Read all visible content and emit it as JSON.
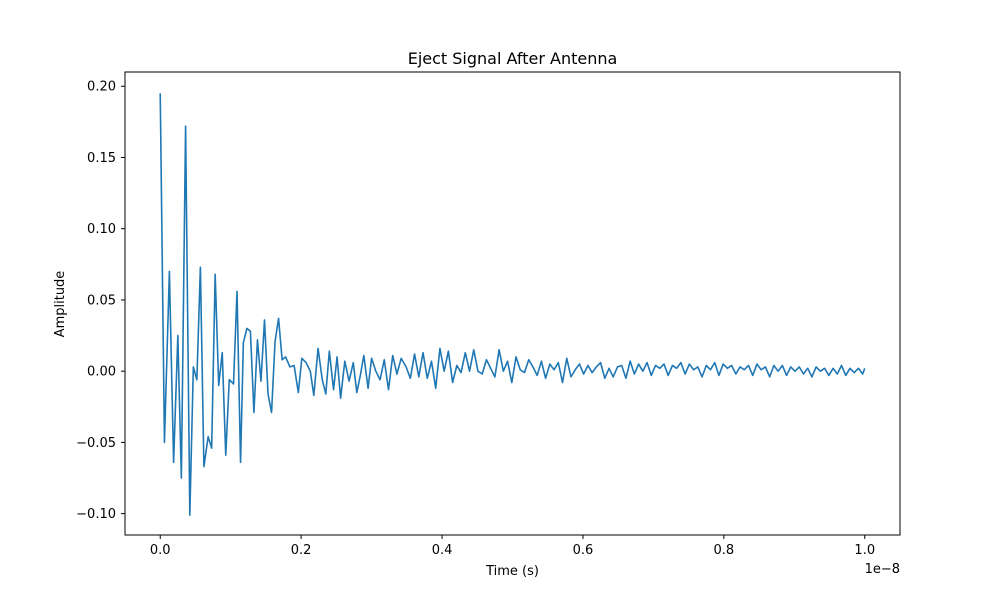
{
  "chart_data": {
    "type": "line",
    "title": "Eject Signal After Antenna",
    "xlabel": "Time (s)",
    "ylabel": "Amplitude",
    "x_offset_label": "1e−8",
    "xlim": [
      -0.05,
      1.05
    ],
    "ylim": [
      -0.115,
      0.21
    ],
    "grid": false,
    "x_ticks": [
      {
        "value": 0.0,
        "label": "0.0"
      },
      {
        "value": 0.2,
        "label": "0.2"
      },
      {
        "value": 0.4,
        "label": "0.4"
      },
      {
        "value": 0.6,
        "label": "0.6"
      },
      {
        "value": 0.8,
        "label": "0.8"
      },
      {
        "value": 1.0,
        "label": "1.0"
      }
    ],
    "y_ticks": [
      {
        "value": -0.1,
        "label": "−0.10"
      },
      {
        "value": -0.05,
        "label": "−0.05"
      },
      {
        "value": 0.0,
        "label": "0.00"
      },
      {
        "value": 0.05,
        "label": "0.05"
      },
      {
        "value": 0.1,
        "label": "0.10"
      },
      {
        "value": 0.15,
        "label": "0.15"
      },
      {
        "value": 0.2,
        "label": "0.20"
      }
    ],
    "series": [
      {
        "color": "#1f77b4",
        "x": [
          0.0,
          0.006,
          0.013,
          0.019,
          0.025,
          0.03,
          0.036,
          0.042,
          0.047,
          0.052,
          0.057,
          0.062,
          0.068,
          0.073,
          0.078,
          0.083,
          0.088,
          0.093,
          0.098,
          0.104,
          0.109,
          0.114,
          0.118,
          0.123,
          0.128,
          0.133,
          0.138,
          0.143,
          0.148,
          0.153,
          0.158,
          0.163,
          0.168,
          0.173,
          0.178,
          0.184,
          0.19,
          0.196,
          0.201,
          0.207,
          0.213,
          0.218,
          0.224,
          0.23,
          0.235,
          0.24,
          0.246,
          0.251,
          0.256,
          0.262,
          0.268,
          0.274,
          0.279,
          0.284,
          0.289,
          0.295,
          0.3,
          0.306,
          0.312,
          0.318,
          0.324,
          0.33,
          0.336,
          0.342,
          0.349,
          0.355,
          0.361,
          0.367,
          0.373,
          0.379,
          0.385,
          0.391,
          0.397,
          0.403,
          0.409,
          0.415,
          0.421,
          0.427,
          0.433,
          0.439,
          0.445,
          0.451,
          0.457,
          0.463,
          0.469,
          0.475,
          0.481,
          0.487,
          0.493,
          0.499,
          0.505,
          0.511,
          0.517,
          0.523,
          0.529,
          0.535,
          0.541,
          0.547,
          0.553,
          0.559,
          0.565,
          0.571,
          0.577,
          0.583,
          0.589,
          0.595,
          0.601,
          0.607,
          0.613,
          0.619,
          0.625,
          0.631,
          0.637,
          0.643,
          0.649,
          0.655,
          0.661,
          0.667,
          0.673,
          0.679,
          0.685,
          0.691,
          0.697,
          0.703,
          0.709,
          0.715,
          0.721,
          0.727,
          0.733,
          0.739,
          0.745,
          0.751,
          0.757,
          0.763,
          0.769,
          0.775,
          0.781,
          0.787,
          0.793,
          0.799,
          0.805,
          0.811,
          0.817,
          0.823,
          0.829,
          0.835,
          0.841,
          0.847,
          0.853,
          0.859,
          0.865,
          0.871,
          0.877,
          0.883,
          0.889,
          0.895,
          0.901,
          0.907,
          0.913,
          0.919,
          0.925,
          0.931,
          0.937,
          0.943,
          0.949,
          0.955,
          0.961,
          0.967,
          0.973,
          0.979,
          0.985,
          0.991,
          0.997,
          1.0
        ],
        "y": [
          0.195,
          -0.05,
          0.07,
          -0.064,
          0.025,
          -0.075,
          0.172,
          -0.101,
          0.003,
          -0.006,
          0.073,
          -0.067,
          -0.046,
          -0.054,
          0.068,
          -0.01,
          0.013,
          -0.059,
          -0.006,
          -0.009,
          0.056,
          -0.064,
          0.02,
          0.03,
          0.028,
          -0.029,
          0.022,
          -0.007,
          0.036,
          -0.016,
          -0.029,
          0.021,
          0.037,
          0.008,
          0.01,
          0.003,
          0.004,
          -0.015,
          0.009,
          0.006,
          0.0,
          -0.017,
          0.016,
          -0.006,
          -0.016,
          0.014,
          -0.013,
          0.01,
          -0.019,
          0.007,
          -0.007,
          0.006,
          -0.015,
          -0.003,
          0.011,
          -0.012,
          0.009,
          0.0,
          -0.006,
          0.008,
          -0.013,
          0.011,
          -0.002,
          0.009,
          0.003,
          -0.005,
          0.012,
          -0.004,
          0.013,
          -0.005,
          0.007,
          -0.012,
          0.016,
          0.0,
          0.014,
          -0.008,
          0.004,
          -0.001,
          0.013,
          0.0,
          0.015,
          0.0,
          -0.002,
          0.008,
          0.002,
          -0.004,
          0.015,
          0.0,
          0.007,
          -0.008,
          0.01,
          0.001,
          -0.001,
          0.008,
          0.003,
          -0.003,
          0.007,
          -0.005,
          0.005,
          0.001,
          0.006,
          -0.008,
          0.009,
          -0.004,
          0.001,
          0.005,
          -0.002,
          0.004,
          -0.001,
          0.003,
          0.006,
          -0.005,
          0.002,
          -0.004,
          0.003,
          0.004,
          -0.005,
          0.007,
          -0.002,
          0.005,
          0.0,
          0.006,
          -0.003,
          0.004,
          0.002,
          0.005,
          -0.003,
          0.004,
          0.002,
          0.006,
          -0.002,
          0.005,
          0.001,
          0.003,
          -0.004,
          0.004,
          0.001,
          0.006,
          -0.003,
          0.005,
          0.002,
          0.004,
          -0.002,
          0.003,
          0.001,
          0.004,
          -0.003,
          0.005,
          0.001,
          0.003,
          -0.004,
          0.004,
          0.0,
          0.004,
          -0.003,
          0.003,
          0.0,
          0.003,
          -0.002,
          0.002,
          -0.004,
          0.003,
          0.0,
          0.002,
          -0.003,
          0.002,
          -0.002,
          0.004,
          -0.003,
          0.002,
          -0.001,
          0.002,
          -0.002,
          0.002
        ]
      }
    ]
  }
}
